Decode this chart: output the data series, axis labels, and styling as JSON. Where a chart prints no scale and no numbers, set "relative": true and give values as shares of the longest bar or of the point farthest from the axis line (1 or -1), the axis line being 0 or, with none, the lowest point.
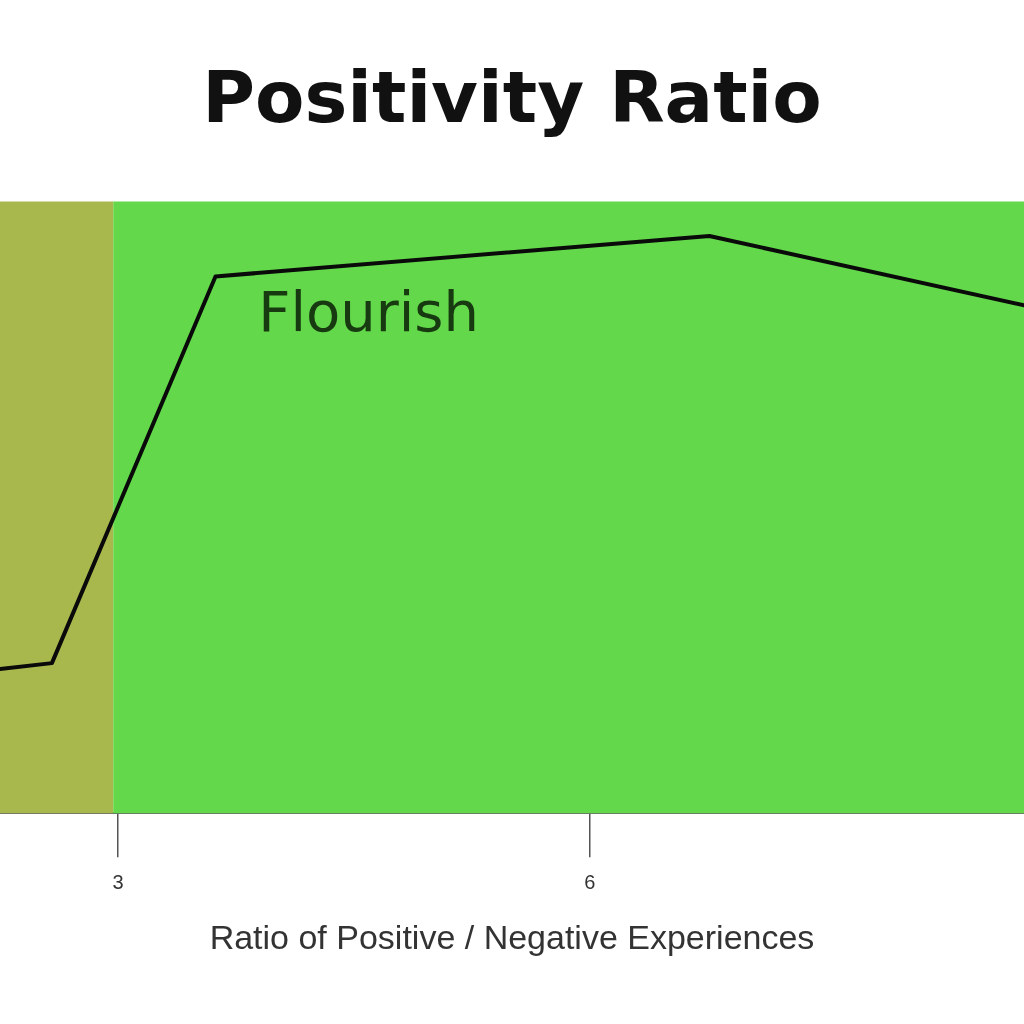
{
  "chart_data": {
    "type": "line",
    "title": "Positivity Ratio",
    "xlabel": "Ratio of Positive / Negative Experiences",
    "relative": true,
    "x": [
      2.25,
      2.58,
      3.62,
      6.76,
      8.76
    ],
    "series": [
      {
        "color": "#0a0a0a",
        "values": [
          0.25,
          0.26,
          0.93,
          1,
          0.88
        ]
      }
    ],
    "xlim": [
      2.25,
      8.76
    ],
    "xticks": [
      3,
      6
    ],
    "grid": false,
    "legend": false,
    "marker": "none",
    "line_style": "solid",
    "bands": [
      {
        "axis": "x",
        "from": 2.25,
        "to": 2.97,
        "color": "#a9b84c"
      },
      {
        "axis": "x",
        "from": 2.97,
        "to": 8.76,
        "color": "#62d84a",
        "label": "Flourish"
      }
    ]
  }
}
